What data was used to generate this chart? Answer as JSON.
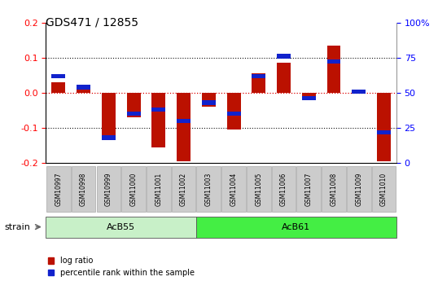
{
  "title": "GDS471 / 12855",
  "samples": [
    "GSM10997",
    "GSM10998",
    "GSM10999",
    "GSM11000",
    "GSM11001",
    "GSM11002",
    "GSM11003",
    "GSM11004",
    "GSM11005",
    "GSM11006",
    "GSM11007",
    "GSM11008",
    "GSM11009",
    "GSM11010"
  ],
  "log_ratio": [
    0.03,
    0.02,
    -0.135,
    -0.07,
    -0.155,
    -0.195,
    -0.04,
    -0.105,
    0.055,
    0.085,
    -0.02,
    0.135,
    0.01,
    -0.195
  ],
  "percentile_rank_raw": [
    0.62,
    0.54,
    0.18,
    0.35,
    0.38,
    0.3,
    0.43,
    0.35,
    0.62,
    0.76,
    0.46,
    0.72,
    0.51,
    0.22
  ],
  "groups": [
    {
      "label": "AcB55",
      "start": 0,
      "end": 5,
      "color": "#c8f0c8"
    },
    {
      "label": "AcB61",
      "start": 6,
      "end": 13,
      "color": "#44ee44"
    }
  ],
  "strain_label": "strain",
  "ylim": [
    -0.2,
    0.2
  ],
  "yticks_left": [
    -0.2,
    -0.1,
    0.0,
    0.1,
    0.2
  ],
  "yticks_right": [
    0,
    25,
    50,
    75,
    100
  ],
  "right_ylim": [
    0,
    100
  ],
  "bar_width": 0.55,
  "red_color": "#bb1100",
  "blue_color": "#1122cc",
  "bg_color": "#ffffff",
  "grid_color": "#111111",
  "zero_line_color": "#dd0000",
  "sample_box_color": "#cccccc",
  "sample_box_edge": "#999999",
  "acb55_color": "#c8f0c8",
  "acb61_color": "#44ee44",
  "acb_edge_color": "#555555"
}
